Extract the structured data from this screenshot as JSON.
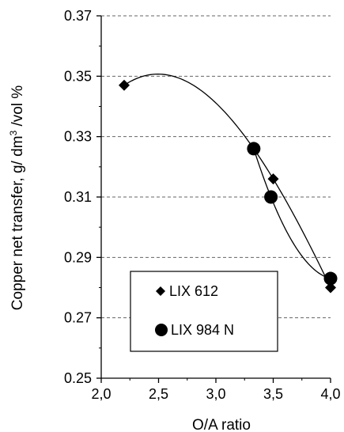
{
  "chart_data": {
    "type": "scatter",
    "xlabel": "O/A ratio",
    "ylabel_prefix": "Copper net transfer, g/ dm",
    "ylabel_sup": "3",
    "ylabel_suffix": " /vol %",
    "xlim": [
      2.0,
      4.0
    ],
    "ylim": [
      0.25,
      0.37
    ],
    "x_ticks": [
      2.0,
      2.5,
      3.0,
      3.5,
      4.0
    ],
    "x_tick_labels": [
      "2,0",
      "2,5",
      "3,0",
      "3,5",
      "4,0"
    ],
    "y_ticks": [
      0.25,
      0.27,
      0.29,
      0.31,
      0.33,
      0.35,
      0.37
    ],
    "y_tick_labels": [
      "0.25",
      "0.27",
      "0.29",
      "0.31",
      "0.33",
      "0.35",
      "0.37"
    ],
    "grid": "horizontal dashed",
    "legend_position": "bottom-left inside plot",
    "series": [
      {
        "name": "LIX 612",
        "marker": "diamond",
        "x": [
          2.2,
          3.33,
          3.5,
          4.0
        ],
        "y": [
          0.347,
          0.326,
          0.316,
          0.28
        ]
      },
      {
        "name": "LIX 984 N",
        "marker": "circle",
        "x": [
          3.33,
          3.48,
          4.0
        ],
        "y": [
          0.326,
          0.31,
          0.283
        ]
      }
    ]
  }
}
